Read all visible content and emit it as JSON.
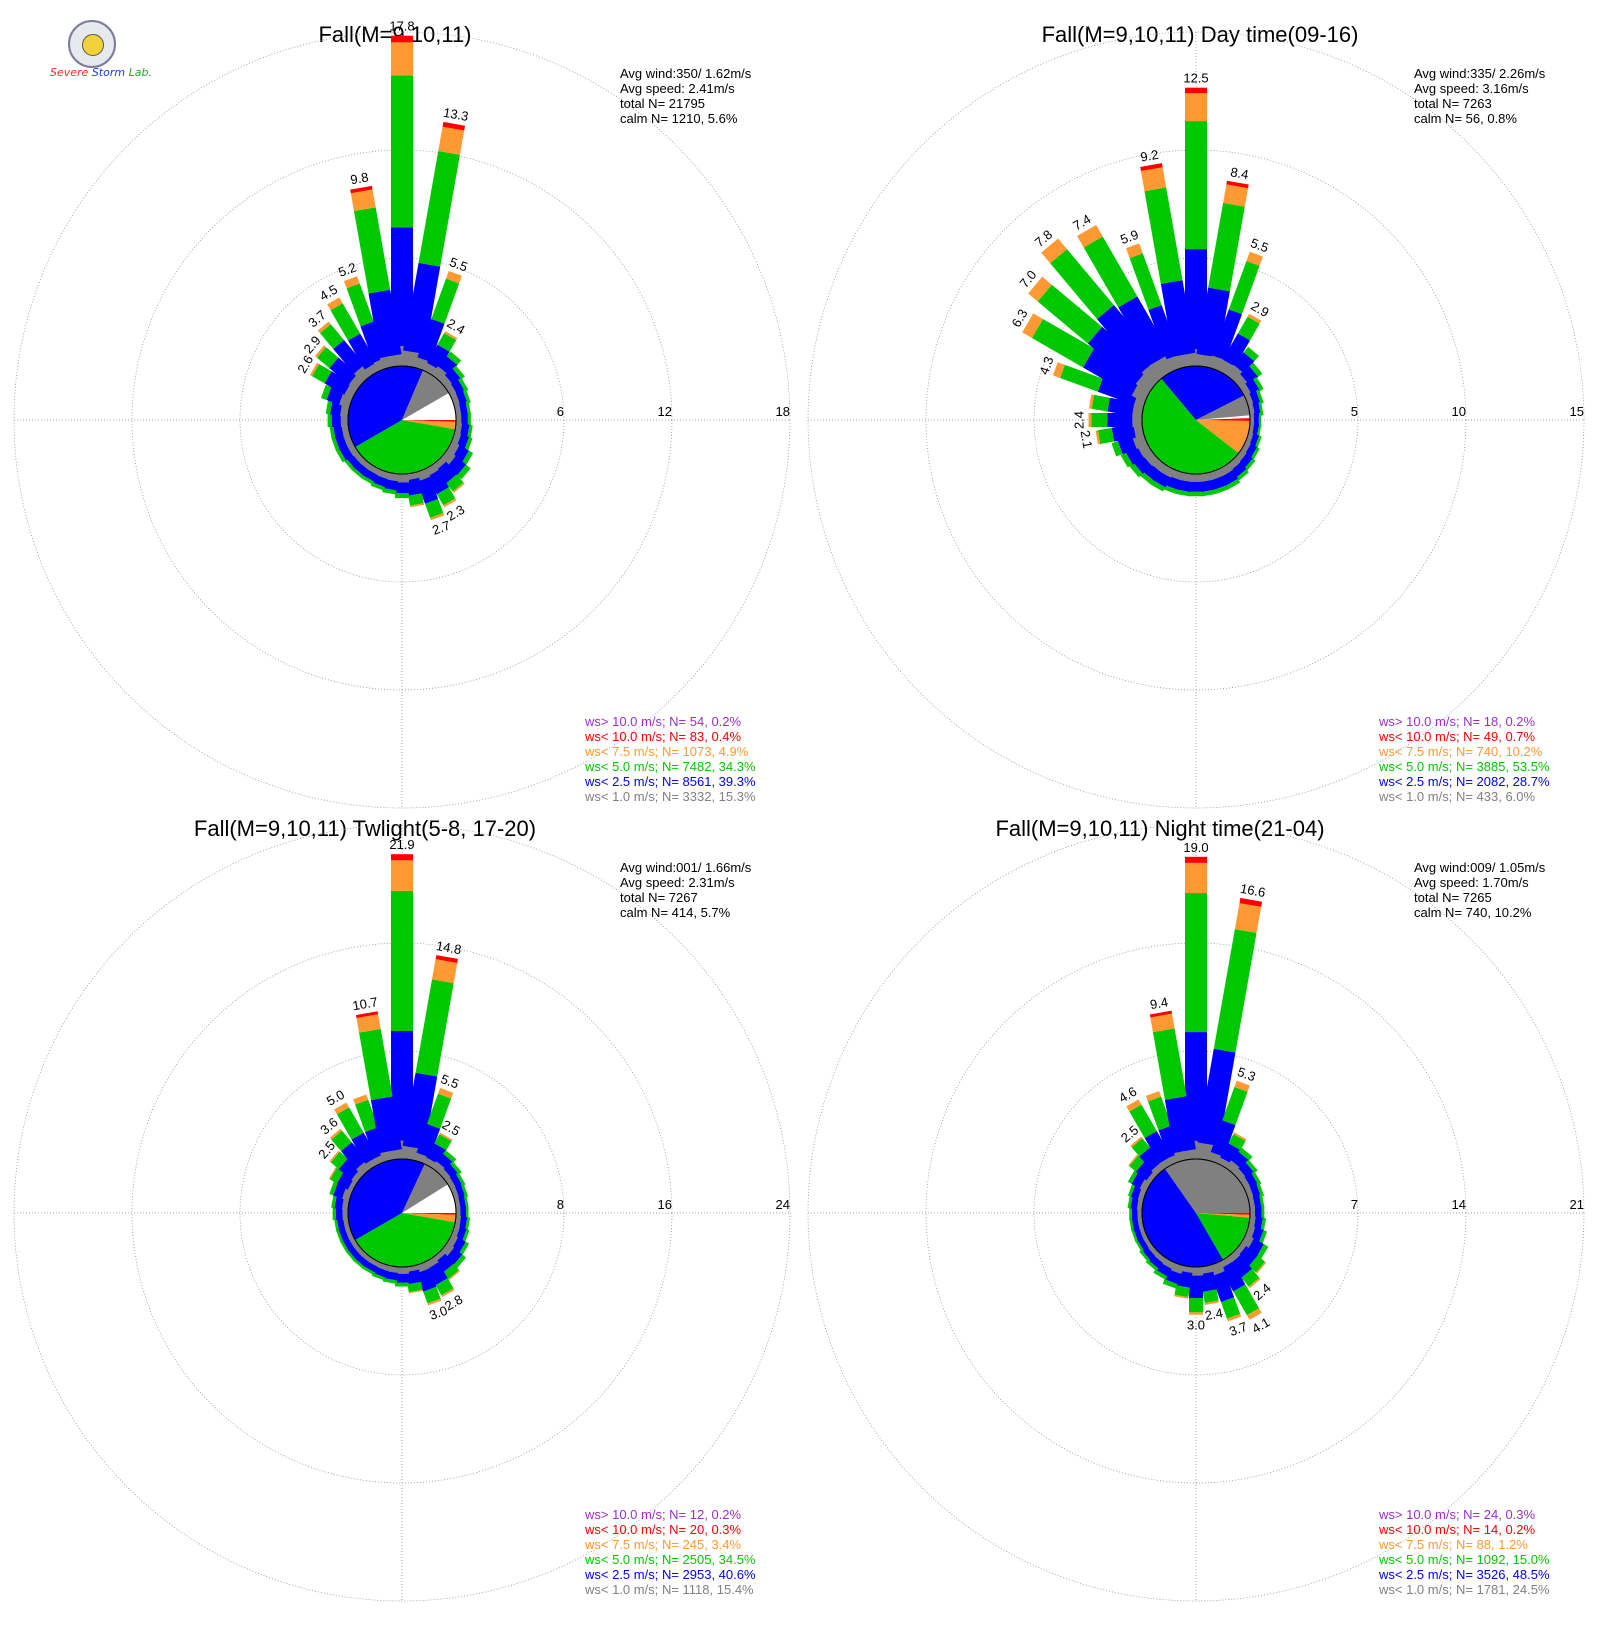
{
  "colors": {
    "gt10": "#9b30c8",
    "lt10": "#ff0000",
    "lt75": "#ff9933",
    "lt5": "#00c800",
    "lt25": "#0000ff",
    "lt1": "#808080",
    "calm": "#ffffff",
    "text": "#000000"
  },
  "logo": {
    "line1": "Severe",
    "line2": "Storm",
    "line3": "Lab."
  },
  "chart_data": [
    {
      "type": "windrose",
      "title": "Fall(M=9,10,11)",
      "ring_labels": [
        "6",
        "12",
        "18"
      ],
      "rmax": 18,
      "stats": {
        "avg_wind": "Avg wind:350/ 1.62m/s",
        "avg_speed": "Avg speed: 2.41m/s",
        "total": "total N=       21795",
        "calm": "calm N=    1210,   5.6%"
      },
      "legend": [
        "ws> 10.0 m/s; N=     54,  0.2%",
        "ws< 10.0 m/s; N=     83,  0.4%",
        "ws<  7.5 m/s; N=   1073,  4.9%",
        "ws<  5.0 m/s; N=   7482, 34.3%",
        "ws<  2.5 m/s; N=   8561, 39.3%",
        "ws<  1.0 m/s; N=   3332, 15.3%"
      ],
      "bars": [
        {
          "dir": 0,
          "total": 17.8,
          "label": "17.8"
        },
        {
          "dir": 10,
          "total": 13.3,
          "label": "13.3"
        },
        {
          "dir": 20,
          "total": 5.5,
          "label": "5.5"
        },
        {
          "dir": 30,
          "total": 2.4,
          "label": "2.4"
        },
        {
          "dir": 40,
          "total": 1.6
        },
        {
          "dir": 50,
          "total": 1.2
        },
        {
          "dir": 60,
          "total": 1.0
        },
        {
          "dir": 70,
          "total": 0.9
        },
        {
          "dir": 80,
          "total": 0.8
        },
        {
          "dir": 90,
          "total": 0.8
        },
        {
          "dir": 100,
          "total": 0.9
        },
        {
          "dir": 110,
          "total": 1.0
        },
        {
          "dir": 120,
          "total": 1.3
        },
        {
          "dir": 130,
          "total": 1.6
        },
        {
          "dir": 140,
          "total": 1.9
        },
        {
          "dir": 150,
          "total": 2.3,
          "label": "2.3"
        },
        {
          "dir": 160,
          "total": 2.7,
          "label": "2.7"
        },
        {
          "dir": 170,
          "total": 1.8
        },
        {
          "dir": 180,
          "total": 1.3
        },
        {
          "dir": 190,
          "total": 1.1
        },
        {
          "dir": 200,
          "total": 1.0
        },
        {
          "dir": 210,
          "total": 0.9
        },
        {
          "dir": 220,
          "total": 0.9
        },
        {
          "dir": 230,
          "total": 0.9
        },
        {
          "dir": 240,
          "total": 1.0
        },
        {
          "dir": 250,
          "total": 1.0
        },
        {
          "dir": 260,
          "total": 1.0
        },
        {
          "dir": 270,
          "total": 1.1
        },
        {
          "dir": 280,
          "total": 1.2
        },
        {
          "dir": 290,
          "total": 1.6
        },
        {
          "dir": 300,
          "total": 2.6,
          "label": "2.6"
        },
        {
          "dir": 310,
          "total": 2.9,
          "label": "2.9"
        },
        {
          "dir": 320,
          "total": 3.7,
          "label": "3.7"
        },
        {
          "dir": 330,
          "total": 4.5,
          "label": "4.5"
        },
        {
          "dir": 340,
          "total": 5.2,
          "label": "5.2"
        },
        {
          "dir": 350,
          "total": 9.8,
          "label": "9.8"
        }
      ],
      "pie": [
        {
          "class": "calm",
          "from": 60,
          "to": 90
        },
        {
          "class": "lt10",
          "from": 90,
          "to": 92
        },
        {
          "class": "lt75",
          "from": 92,
          "to": 100
        },
        {
          "class": "lt5",
          "from": 100,
          "to": 240
        },
        {
          "class": "lt25",
          "from": 240,
          "to": 383
        },
        {
          "class": "lt1",
          "from": 383,
          "to": 420
        }
      ]
    },
    {
      "type": "windrose",
      "title": "Fall(M=9,10,11) Day time(09-16)",
      "ring_labels": [
        "5",
        "10",
        "15"
      ],
      "rmax": 15,
      "stats": {
        "avg_wind": "Avg wind:335/ 2.26m/s",
        "avg_speed": "Avg speed: 3.16m/s",
        "total": "total N=        7263",
        "calm": "calm N=      56,   0.8%"
      },
      "legend": [
        "ws> 10.0 m/s; N=     18,  0.2%",
        "ws< 10.0 m/s; N=     49,  0.7%",
        "ws<  7.5 m/s; N=    740, 10.2%",
        "ws<  5.0 m/s; N=   3885, 53.5%",
        "ws<  2.5 m/s; N=   2082, 28.7%",
        "ws<  1.0 m/s; N=    433,  6.0%"
      ],
      "bars": [
        {
          "dir": 0,
          "total": 12.5,
          "label": "12.5"
        },
        {
          "dir": 10,
          "total": 8.4,
          "label": "8.4"
        },
        {
          "dir": 20,
          "total": 5.5,
          "label": "5.5"
        },
        {
          "dir": 30,
          "total": 2.9,
          "label": "2.9"
        },
        {
          "dir": 40,
          "total": 1.6
        },
        {
          "dir": 50,
          "total": 1.2
        },
        {
          "dir": 60,
          "total": 0.9
        },
        {
          "dir": 70,
          "total": 0.7
        },
        {
          "dir": 80,
          "total": 0.6
        },
        {
          "dir": 90,
          "total": 0.5
        },
        {
          "dir": 100,
          "total": 0.5
        },
        {
          "dir": 110,
          "total": 0.6
        },
        {
          "dir": 120,
          "total": 0.7
        },
        {
          "dir": 130,
          "total": 0.8
        },
        {
          "dir": 140,
          "total": 0.9
        },
        {
          "dir": 150,
          "total": 1.0
        },
        {
          "dir": 160,
          "total": 1.0
        },
        {
          "dir": 170,
          "total": 1.0
        },
        {
          "dir": 180,
          "total": 1.0
        },
        {
          "dir": 190,
          "total": 1.0
        },
        {
          "dir": 200,
          "total": 1.0
        },
        {
          "dir": 210,
          "total": 1.1
        },
        {
          "dir": 220,
          "total": 1.1
        },
        {
          "dir": 230,
          "total": 1.2
        },
        {
          "dir": 240,
          "total": 1.3
        },
        {
          "dir": 250,
          "total": 1.5
        },
        {
          "dir": 260,
          "total": 2.1,
          "label": "2.1"
        },
        {
          "dir": 270,
          "total": 2.4,
          "label": "2.4"
        },
        {
          "dir": 280,
          "total": 2.4
        },
        {
          "dir": 290,
          "total": 4.3,
          "label": "4.3"
        },
        {
          "dir": 300,
          "total": 6.3,
          "label": "6.3"
        },
        {
          "dir": 310,
          "total": 7.0,
          "label": "7.0"
        },
        {
          "dir": 320,
          "total": 7.8,
          "label": "7.8"
        },
        {
          "dir": 330,
          "total": 7.4,
          "label": "7.4"
        },
        {
          "dir": 340,
          "total": 5.9,
          "label": "5.9"
        },
        {
          "dir": 350,
          "total": 9.2,
          "label": "9.2"
        }
      ],
      "pie": [
        {
          "class": "calm",
          "from": 85,
          "to": 88
        },
        {
          "class": "lt10",
          "from": 88,
          "to": 91
        },
        {
          "class": "lt75",
          "from": 91,
          "to": 128
        },
        {
          "class": "lt5",
          "from": 128,
          "to": 320
        },
        {
          "class": "lt25",
          "from": 320,
          "to": 423
        },
        {
          "class": "lt1",
          "from": 423,
          "to": 445
        }
      ]
    },
    {
      "type": "windrose",
      "title": "Fall(M=9,10,11) Twlight(5-8, 17-20)",
      "ring_labels": [
        "8",
        "16",
        "24"
      ],
      "rmax": 24,
      "stats": {
        "avg_wind": "Avg wind:001/ 1.66m/s",
        "avg_speed": "Avg speed: 2.31m/s",
        "total": "total N=        7267",
        "calm": "calm N=     414,   5.7%"
      },
      "legend": [
        "ws> 10.0 m/s; N=     12,  0.2%",
        "ws< 10.0 m/s; N=     20,  0.3%",
        "ws<  7.5 m/s; N=    245,  3.4%",
        "ws<  5.0 m/s; N=   2505, 34.5%",
        "ws<  2.5 m/s; N=   2953, 40.6%",
        "ws<  1.0 m/s; N=   1118, 15.4%"
      ],
      "bars": [
        {
          "dir": 0,
          "total": 21.9,
          "label": "21.9"
        },
        {
          "dir": 10,
          "total": 14.8,
          "label": "14.8"
        },
        {
          "dir": 20,
          "total": 5.5,
          "label": "5.5"
        },
        {
          "dir": 30,
          "total": 2.5,
          "label": "2.5"
        },
        {
          "dir": 40,
          "total": 1.6
        },
        {
          "dir": 50,
          "total": 1.3
        },
        {
          "dir": 60,
          "total": 1.1
        },
        {
          "dir": 70,
          "total": 1.0
        },
        {
          "dir": 80,
          "total": 0.9
        },
        {
          "dir": 90,
          "total": 0.9
        },
        {
          "dir": 100,
          "total": 1.0
        },
        {
          "dir": 110,
          "total": 1.1
        },
        {
          "dir": 120,
          "total": 1.4
        },
        {
          "dir": 130,
          "total": 1.7
        },
        {
          "dir": 140,
          "total": 2.0
        },
        {
          "dir": 150,
          "total": 2.8,
          "label": "2.8"
        },
        {
          "dir": 160,
          "total": 3.0,
          "label": "3.0"
        },
        {
          "dir": 170,
          "total": 1.9
        },
        {
          "dir": 180,
          "total": 1.4
        },
        {
          "dir": 190,
          "total": 1.2
        },
        {
          "dir": 200,
          "total": 1.1
        },
        {
          "dir": 210,
          "total": 1.0
        },
        {
          "dir": 220,
          "total": 1.0
        },
        {
          "dir": 230,
          "total": 1.0
        },
        {
          "dir": 240,
          "total": 1.0
        },
        {
          "dir": 250,
          "total": 1.0
        },
        {
          "dir": 260,
          "total": 1.0
        },
        {
          "dir": 270,
          "total": 1.1
        },
        {
          "dir": 280,
          "total": 1.2
        },
        {
          "dir": 290,
          "total": 1.5
        },
        {
          "dir": 300,
          "total": 1.9
        },
        {
          "dir": 310,
          "total": 2.5,
          "label": "2.5"
        },
        {
          "dir": 320,
          "total": 3.6,
          "label": "3.6"
        },
        {
          "dir": 330,
          "total": 5.0,
          "label": "5.0"
        },
        {
          "dir": 340,
          "total": 5.0
        },
        {
          "dir": 350,
          "total": 10.7,
          "label": "10.7"
        }
      ],
      "pie": [
        {
          "class": "calm",
          "from": 58,
          "to": 90
        },
        {
          "class": "lt10",
          "from": 90,
          "to": 92
        },
        {
          "class": "lt75",
          "from": 92,
          "to": 100
        },
        {
          "class": "lt5",
          "from": 100,
          "to": 240
        },
        {
          "class": "lt25",
          "from": 240,
          "to": 385
        },
        {
          "class": "lt1",
          "from": 385,
          "to": 418
        }
      ]
    },
    {
      "type": "windrose",
      "title": "Fall(M=9,10,11) Night time(21-04)",
      "ring_labels": [
        "7",
        "14",
        "21"
      ],
      "rmax": 21,
      "stats": {
        "avg_wind": "Avg wind:009/ 1.05m/s",
        "avg_speed": "Avg speed: 1.70m/s",
        "total": "total N=        7265",
        "calm": "calm N=     740,  10.2%"
      },
      "legend": [
        "ws> 10.0 m/s; N=     24,  0.3%",
        "ws< 10.0 m/s; N=     14,  0.2%",
        "ws<  7.5 m/s; N=     88,  1.2%",
        "ws<  5.0 m/s; N=   1092, 15.0%",
        "ws<  2.5 m/s; N=   3526, 48.5%",
        "ws<  1.0 m/s; N=   1781, 24.5%"
      ],
      "bars": [
        {
          "dir": 0,
          "total": 19.0,
          "label": "19.0"
        },
        {
          "dir": 10,
          "total": 16.6,
          "label": "16.6"
        },
        {
          "dir": 20,
          "total": 5.3,
          "label": "5.3"
        },
        {
          "dir": 30,
          "total": 2.2
        },
        {
          "dir": 40,
          "total": 1.6
        },
        {
          "dir": 50,
          "total": 1.3
        },
        {
          "dir": 60,
          "total": 1.1
        },
        {
          "dir": 70,
          "total": 1.0
        },
        {
          "dir": 80,
          "total": 0.9
        },
        {
          "dir": 90,
          "total": 0.9
        },
        {
          "dir": 100,
          "total": 1.0
        },
        {
          "dir": 110,
          "total": 1.2
        },
        {
          "dir": 120,
          "total": 1.6
        },
        {
          "dir": 130,
          "total": 2.0
        },
        {
          "dir": 140,
          "total": 2.4,
          "label": "2.4"
        },
        {
          "dir": 150,
          "total": 4.1,
          "label": "4.1"
        },
        {
          "dir": 160,
          "total": 3.7,
          "label": "3.7"
        },
        {
          "dir": 170,
          "total": 2.4,
          "label": "2.4"
        },
        {
          "dir": 180,
          "total": 3.0,
          "label": "3.0"
        },
        {
          "dir": 190,
          "total": 2.0
        },
        {
          "dir": 200,
          "total": 1.5
        },
        {
          "dir": 210,
          "total": 1.2
        },
        {
          "dir": 220,
          "total": 1.0
        },
        {
          "dir": 230,
          "total": 0.9
        },
        {
          "dir": 240,
          "total": 0.8
        },
        {
          "dir": 250,
          "total": 0.8
        },
        {
          "dir": 260,
          "total": 0.8
        },
        {
          "dir": 270,
          "total": 0.8
        },
        {
          "dir": 280,
          "total": 0.9
        },
        {
          "dir": 290,
          "total": 1.0
        },
        {
          "dir": 300,
          "total": 1.3
        },
        {
          "dir": 310,
          "total": 1.8
        },
        {
          "dir": 320,
          "total": 2.5,
          "label": "2.5"
        },
        {
          "dir": 330,
          "total": 4.6,
          "label": "4.6"
        },
        {
          "dir": 340,
          "total": 4.6
        },
        {
          "dir": 350,
          "total": 9.4,
          "label": "9.4"
        }
      ],
      "pie": [
        {
          "class": "lt10",
          "from": 90,
          "to": 92
        },
        {
          "class": "lt75",
          "from": 92,
          "to": 95
        },
        {
          "class": "lt5",
          "from": 95,
          "to": 150
        },
        {
          "class": "lt25",
          "from": 150,
          "to": 325
        },
        {
          "class": "lt1",
          "from": 325,
          "to": 450
        }
      ]
    }
  ]
}
